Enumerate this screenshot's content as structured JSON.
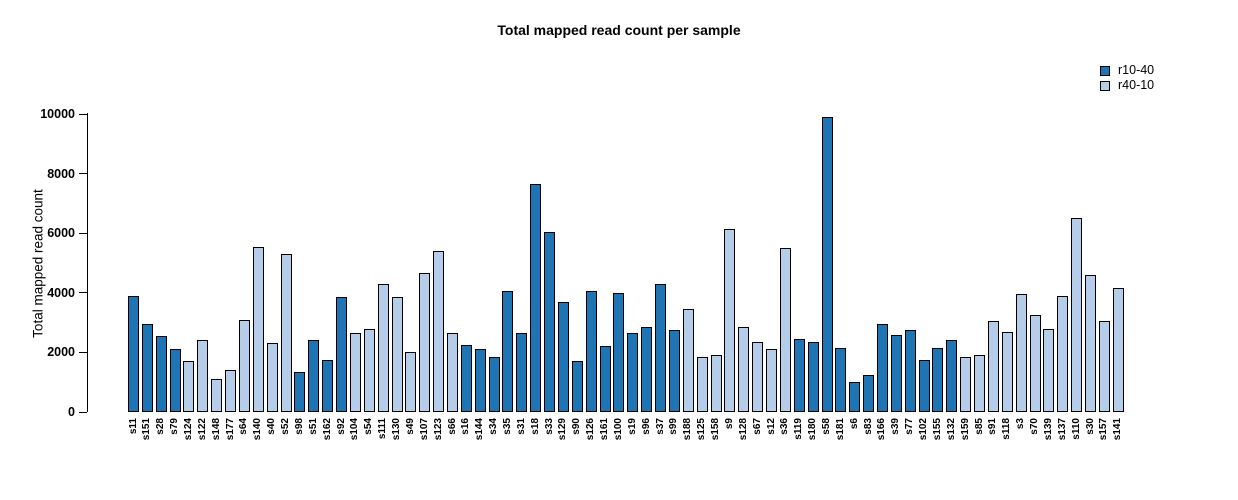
{
  "chart_data": {
    "type": "bar",
    "title": "Total mapped read count per sample",
    "xlabel": "",
    "ylabel": "Total mapped read count",
    "ylim": [
      0,
      10000
    ],
    "yticks": [
      0,
      2000,
      4000,
      6000,
      8000,
      10000
    ],
    "grid": false,
    "legend_position": "top-right",
    "legend": [
      {
        "name": "r10-40",
        "color": "#1f74b4"
      },
      {
        "name": "r40-10",
        "color": "#b5cde9"
      }
    ],
    "bars": [
      {
        "label": "s11",
        "series": "r10-40",
        "value": 3900
      },
      {
        "label": "s151",
        "series": "r10-40",
        "value": 2950
      },
      {
        "label": "s28",
        "series": "r10-40",
        "value": 2550
      },
      {
        "label": "s79",
        "series": "r10-40",
        "value": 2100
      },
      {
        "label": "s124",
        "series": "r40-10",
        "value": 1700
      },
      {
        "label": "s122",
        "series": "r40-10",
        "value": 2400
      },
      {
        "label": "s148",
        "series": "r40-10",
        "value": 1100
      },
      {
        "label": "s177",
        "series": "r40-10",
        "value": 1400
      },
      {
        "label": "s64",
        "series": "r40-10",
        "value": 3100
      },
      {
        "label": "s140",
        "series": "r40-10",
        "value": 5550
      },
      {
        "label": "s40",
        "series": "r40-10",
        "value": 2300
      },
      {
        "label": "s52",
        "series": "r40-10",
        "value": 5300
      },
      {
        "label": "s98",
        "series": "r10-40",
        "value": 1350
      },
      {
        "label": "s51",
        "series": "r10-40",
        "value": 2400
      },
      {
        "label": "s162",
        "series": "r10-40",
        "value": 1750
      },
      {
        "label": "s92",
        "series": "r10-40",
        "value": 3850
      },
      {
        "label": "s104",
        "series": "r40-10",
        "value": 2650
      },
      {
        "label": "s54",
        "series": "r40-10",
        "value": 2800
      },
      {
        "label": "s111",
        "series": "r40-10",
        "value": 4300
      },
      {
        "label": "s130",
        "series": "r40-10",
        "value": 3850
      },
      {
        "label": "s49",
        "series": "r40-10",
        "value": 2000
      },
      {
        "label": "s107",
        "series": "r40-10",
        "value": 4650
      },
      {
        "label": "s123",
        "series": "r40-10",
        "value": 5400
      },
      {
        "label": "s66",
        "series": "r40-10",
        "value": 2650
      },
      {
        "label": "s16",
        "series": "r10-40",
        "value": 2250
      },
      {
        "label": "s144",
        "series": "r10-40",
        "value": 2100
      },
      {
        "label": "s34",
        "series": "r10-40",
        "value": 1850
      },
      {
        "label": "s35",
        "series": "r10-40",
        "value": 4050
      },
      {
        "label": "s31",
        "series": "r10-40",
        "value": 2650
      },
      {
        "label": "s18",
        "series": "r10-40",
        "value": 7650
      },
      {
        "label": "s33",
        "series": "r10-40",
        "value": 6050
      },
      {
        "label": "s129",
        "series": "r10-40",
        "value": 3700
      },
      {
        "label": "s90",
        "series": "r10-40",
        "value": 1700
      },
      {
        "label": "s126",
        "series": "r10-40",
        "value": 4050
      },
      {
        "label": "s161",
        "series": "r10-40",
        "value": 2200
      },
      {
        "label": "s100",
        "series": "r10-40",
        "value": 4000
      },
      {
        "label": "s19",
        "series": "r10-40",
        "value": 2650
      },
      {
        "label": "s96",
        "series": "r10-40",
        "value": 2850
      },
      {
        "label": "s37",
        "series": "r10-40",
        "value": 4300
      },
      {
        "label": "s99",
        "series": "r10-40",
        "value": 2750
      },
      {
        "label": "s188",
        "series": "r40-10",
        "value": 3450
      },
      {
        "label": "s125",
        "series": "r40-10",
        "value": 1850
      },
      {
        "label": "s158",
        "series": "r40-10",
        "value": 1900
      },
      {
        "label": "s9",
        "series": "r40-10",
        "value": 6150
      },
      {
        "label": "s128",
        "series": "r40-10",
        "value": 2850
      },
      {
        "label": "s67",
        "series": "r40-10",
        "value": 2350
      },
      {
        "label": "s12",
        "series": "r40-10",
        "value": 2100
      },
      {
        "label": "s36",
        "series": "r40-10",
        "value": 5500
      },
      {
        "label": "s119",
        "series": "r10-40",
        "value": 2450
      },
      {
        "label": "s180",
        "series": "r10-40",
        "value": 2350
      },
      {
        "label": "s58",
        "series": "r10-40",
        "value": 9900
      },
      {
        "label": "s181",
        "series": "r10-40",
        "value": 2150
      },
      {
        "label": "s6",
        "series": "r10-40",
        "value": 1000
      },
      {
        "label": "s83",
        "series": "r10-40",
        "value": 1250
      },
      {
        "label": "s166",
        "series": "r10-40",
        "value": 2950
      },
      {
        "label": "s39",
        "series": "r10-40",
        "value": 2600
      },
      {
        "label": "s77",
        "series": "r10-40",
        "value": 2750
      },
      {
        "label": "s102",
        "series": "r10-40",
        "value": 1750
      },
      {
        "label": "s155",
        "series": "r10-40",
        "value": 2150
      },
      {
        "label": "s132",
        "series": "r10-40",
        "value": 2400
      },
      {
        "label": "s159",
        "series": "r40-10",
        "value": 1850
      },
      {
        "label": "s85",
        "series": "r40-10",
        "value": 1900
      },
      {
        "label": "s91",
        "series": "r40-10",
        "value": 3050
      },
      {
        "label": "s118",
        "series": "r40-10",
        "value": 2700
      },
      {
        "label": "s3",
        "series": "r40-10",
        "value": 3950
      },
      {
        "label": "s70",
        "series": "r40-10",
        "value": 3250
      },
      {
        "label": "s139",
        "series": "r40-10",
        "value": 2800
      },
      {
        "label": "s137",
        "series": "r40-10",
        "value": 3900
      },
      {
        "label": "s110",
        "series": "r40-10",
        "value": 6500
      },
      {
        "label": "s30",
        "series": "r40-10",
        "value": 4600
      },
      {
        "label": "s157",
        "series": "r40-10",
        "value": 3050
      },
      {
        "label": "s141",
        "series": "r40-10",
        "value": 4150
      }
    ]
  }
}
